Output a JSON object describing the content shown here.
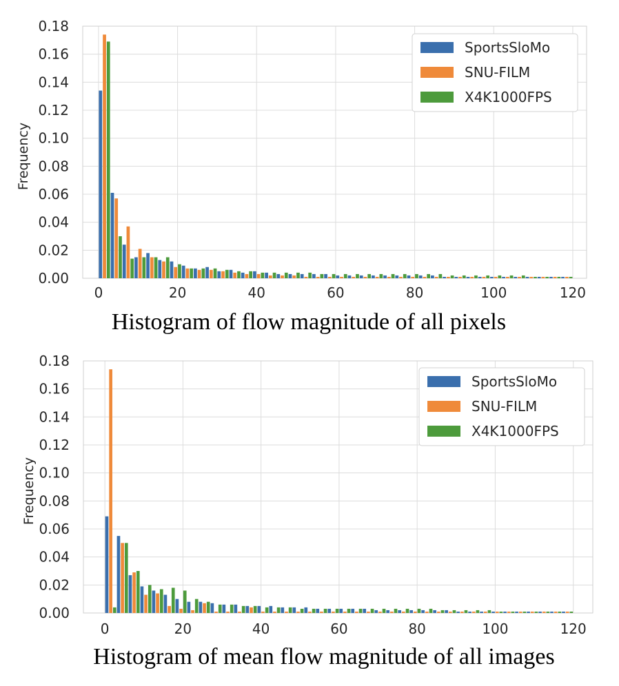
{
  "chart_data": [
    {
      "type": "bar",
      "title": "Histogram of flow magnitude of all pixels",
      "xlabel": "",
      "ylabel": "Frequency",
      "xlim": [
        -4,
        123.5
      ],
      "ylim": [
        0,
        0.18
      ],
      "xticks": [
        0,
        20,
        40,
        60,
        80,
        100,
        120
      ],
      "yticks": [
        0.0,
        0.02,
        0.04,
        0.06,
        0.08,
        0.1,
        0.12,
        0.14,
        0.16,
        0.18
      ],
      "ytick_labels": [
        "0.00",
        "0.02",
        "0.04",
        "0.06",
        "0.08",
        "0.10",
        "0.12",
        "0.14",
        "0.16",
        "0.18"
      ],
      "bin_width": 3,
      "bin_starts": [
        0,
        3,
        6,
        9,
        12,
        15,
        18,
        21,
        24,
        27,
        30,
        33,
        36,
        39,
        42,
        45,
        48,
        51,
        54,
        57,
        60,
        63,
        66,
        69,
        72,
        75,
        78,
        81,
        84,
        87,
        90,
        93,
        96,
        99,
        102,
        105,
        108,
        111,
        114,
        117
      ],
      "grid": true,
      "legend_position": "top-right",
      "series": [
        {
          "name": "SportsSloMo",
          "color": "#3a6fad",
          "values": [
            0.134,
            0.061,
            0.024,
            0.015,
            0.018,
            0.013,
            0.012,
            0.009,
            0.007,
            0.008,
            0.005,
            0.006,
            0.004,
            0.005,
            0.004,
            0.003,
            0.003,
            0.003,
            0.003,
            0.003,
            0.002,
            0.002,
            0.002,
            0.002,
            0.002,
            0.002,
            0.002,
            0.002,
            0.002,
            0.001,
            0.001,
            0.001,
            0.001,
            0.001,
            0.001,
            0.001,
            0.001,
            0.001,
            0.001,
            0.001
          ]
        },
        {
          "name": "SNU-FILM",
          "color": "#ef8a3a",
          "values": [
            0.174,
            0.057,
            0.037,
            0.021,
            0.015,
            0.012,
            0.008,
            0.007,
            0.006,
            0.006,
            0.005,
            0.004,
            0.003,
            0.003,
            0.002,
            0.002,
            0.002,
            0.001,
            0.001,
            0.001,
            0.001,
            0.001,
            0.001,
            0.001,
            0.001,
            0.001,
            0.001,
            0.001,
            0.001,
            0.001,
            0.001,
            0.001,
            0.001,
            0.001,
            0.001,
            0.001,
            0.001,
            0.001,
            0.001,
            0.001
          ]
        },
        {
          "name": "X4K1000FPS",
          "color": "#4d9b3c",
          "values": [
            0.169,
            0.03,
            0.014,
            0.015,
            0.015,
            0.015,
            0.01,
            0.007,
            0.007,
            0.007,
            0.006,
            0.005,
            0.005,
            0.004,
            0.004,
            0.004,
            0.004,
            0.004,
            0.003,
            0.003,
            0.003,
            0.003,
            0.003,
            0.003,
            0.003,
            0.003,
            0.003,
            0.003,
            0.003,
            0.002,
            0.002,
            0.002,
            0.002,
            0.002,
            0.002,
            0.002,
            0.001,
            0.001,
            0.001,
            0.001
          ]
        }
      ]
    },
    {
      "type": "bar",
      "title": "Histogram of mean flow magnitude of all images",
      "xlabel": "",
      "ylabel": "Frequency",
      "xlim": [
        -5.5,
        125
      ],
      "ylim": [
        0,
        0.18
      ],
      "xticks": [
        0,
        20,
        40,
        60,
        80,
        100,
        120
      ],
      "yticks": [
        0.0,
        0.02,
        0.04,
        0.06,
        0.08,
        0.1,
        0.12,
        0.14,
        0.16,
        0.18
      ],
      "ytick_labels": [
        "0.00",
        "0.02",
        "0.04",
        "0.06",
        "0.08",
        "0.10",
        "0.12",
        "0.14",
        "0.16",
        "0.18"
      ],
      "bin_width": 3,
      "bin_starts": [
        0,
        3,
        6,
        9,
        12,
        15,
        18,
        21,
        24,
        27,
        30,
        33,
        36,
        39,
        42,
        45,
        48,
        51,
        54,
        57,
        60,
        63,
        66,
        69,
        72,
        75,
        78,
        81,
        84,
        87,
        90,
        93,
        96,
        99,
        102,
        105,
        108,
        111,
        114,
        117
      ],
      "grid": true,
      "legend_position": "top-right",
      "series": [
        {
          "name": "SportsSloMo",
          "color": "#3a6fad",
          "values": [
            0.069,
            0.055,
            0.027,
            0.019,
            0.016,
            0.013,
            0.01,
            0.008,
            0.008,
            0.007,
            0.006,
            0.006,
            0.005,
            0.005,
            0.005,
            0.004,
            0.004,
            0.004,
            0.003,
            0.003,
            0.003,
            0.003,
            0.003,
            0.002,
            0.002,
            0.002,
            0.002,
            0.002,
            0.002,
            0.002,
            0.001,
            0.001,
            0.001,
            0.001,
            0.001,
            0.001,
            0.001,
            0.001,
            0.001,
            0.001
          ]
        },
        {
          "name": "SNU-FILM",
          "color": "#ef8a3a",
          "values": [
            0.174,
            0.05,
            0.029,
            0.013,
            0.014,
            0.005,
            0.003,
            0.002,
            0.007,
            0.001,
            0.001,
            0.001,
            0.004,
            0.001,
            0.001,
            0.001,
            0.001,
            0.001,
            0.001,
            0.001,
            0.001,
            0.001,
            0.001,
            0.001,
            0.001,
            0.001,
            0.001,
            0.001,
            0.001,
            0.001,
            0.001,
            0.001,
            0.001,
            0.001,
            0.001,
            0.001,
            0.001,
            0.001,
            0.001,
            0.001
          ]
        },
        {
          "name": "X4K1000FPS",
          "color": "#4d9b3c",
          "values": [
            0.004,
            0.05,
            0.03,
            0.02,
            0.017,
            0.018,
            0.016,
            0.01,
            0.008,
            0.006,
            0.006,
            0.005,
            0.005,
            0.004,
            0.004,
            0.004,
            0.003,
            0.003,
            0.003,
            0.003,
            0.003,
            0.003,
            0.003,
            0.003,
            0.003,
            0.003,
            0.003,
            0.003,
            0.002,
            0.002,
            0.002,
            0.002,
            0.002,
            0.001,
            0.001,
            0.001,
            0.001,
            0.001,
            0.001,
            0.001
          ]
        }
      ]
    }
  ]
}
